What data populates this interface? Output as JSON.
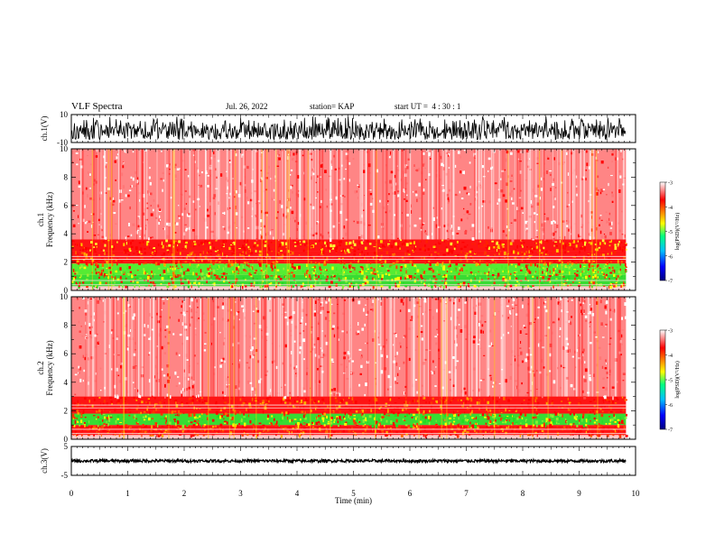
{
  "header": {
    "title": "VLF Spectra",
    "date": "Jul. 26, 2022",
    "station": "station= KAP",
    "start": "start UT =  4 : 30 : 1"
  },
  "colors": {
    "colormap": [
      "#000080",
      "#0000ff",
      "#00c0ff",
      "#00ff80",
      "#ffff00",
      "#ff8000",
      "#ff0000",
      "#ffffff"
    ]
  },
  "chart_data": [
    {
      "type": "line",
      "panel": "waveform-ch1",
      "ylabel": "ch.1(V)",
      "ylim": [
        -10,
        10
      ],
      "yticks": [
        "10",
        "-10"
      ],
      "xlim": [
        0,
        10
      ],
      "x_extent": 9.83,
      "envelope": {
        "center": -2,
        "low": -8,
        "high": 9,
        "color": "#000000"
      }
    },
    {
      "type": "heatmap",
      "panel": "spectrogram-ch1",
      "ylabel": "ch.1 Frequency (kHz)",
      "ylim": [
        0,
        10
      ],
      "yticks": [
        "0",
        "2",
        "4",
        "6",
        "8",
        "10"
      ],
      "xlim": [
        0,
        10
      ],
      "x_extent": 9.83,
      "bands_khz": [
        {
          "from": 0.3,
          "to": 1.1,
          "level": "green-yellow"
        },
        {
          "from": 1.1,
          "to": 1.9,
          "level": "green-yellow-red"
        },
        {
          "from": 1.9,
          "to": 2.8,
          "level": "red-orange"
        },
        {
          "from": 2.8,
          "to": 3.6,
          "level": "red-yellow"
        },
        {
          "from": 3.6,
          "to": 10,
          "level": "speckled-red"
        }
      ],
      "colorbar": {
        "label": "log(PSD)(V²/Hz)",
        "ticks": [
          "-3",
          "-4",
          "-5",
          "-6",
          "-7"
        ],
        "range": [
          -7,
          -3
        ]
      }
    },
    {
      "type": "heatmap",
      "panel": "spectrogram-ch2",
      "ylabel": "ch.2 Frequency (kHz)",
      "ylim": [
        0,
        10
      ],
      "yticks": [
        "0",
        "2",
        "4",
        "6",
        "8",
        "10"
      ],
      "xlim": [
        0,
        10
      ],
      "x_extent": 9.83,
      "bands_khz": [
        {
          "from": 0.3,
          "to": 1.0,
          "level": "red-orange"
        },
        {
          "from": 1.0,
          "to": 1.8,
          "level": "green-yellow"
        },
        {
          "from": 1.8,
          "to": 3.0,
          "level": "red-orange"
        },
        {
          "from": 3.0,
          "to": 10,
          "level": "speckled-red"
        }
      ],
      "colorbar": {
        "label": "log(PSD)(V²/Hz)",
        "ticks": [
          "-3",
          "-4",
          "-5",
          "-6",
          "-7"
        ],
        "range": [
          -7,
          -3
        ]
      }
    },
    {
      "type": "line",
      "panel": "waveform-ch3",
      "ylabel": "ch.3(V)",
      "ylim": [
        -5,
        5
      ],
      "yticks": [
        "5",
        "-5"
      ],
      "xlim": [
        0,
        10
      ],
      "x_extent": 9.83,
      "envelope": {
        "center": 0,
        "low": -0.5,
        "high": 0.5,
        "color": "#000000"
      }
    }
  ],
  "x_axis": {
    "label": "Time (min)",
    "ticks": [
      "0",
      "1",
      "2",
      "3",
      "4",
      "5",
      "6",
      "7",
      "8",
      "9",
      "10"
    ]
  }
}
